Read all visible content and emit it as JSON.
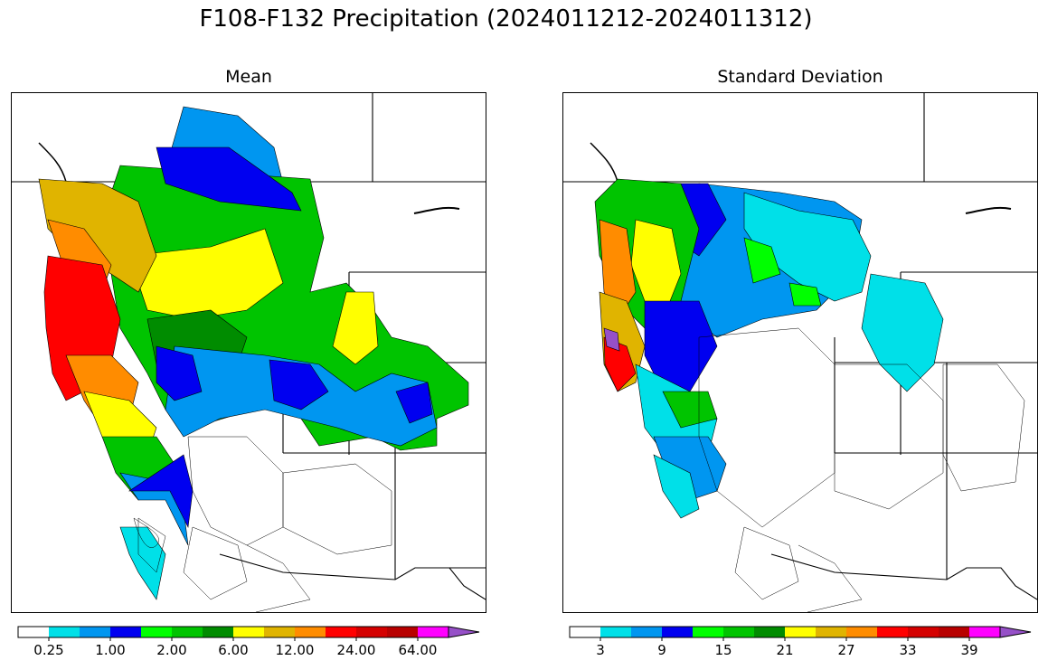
{
  "figure": {
    "title": "F108-F132 Precipitation (2024011212-2024011312)"
  },
  "panels": [
    {
      "id": "mean",
      "title": "Mean",
      "colorbar": {
        "colors": [
          "#ffffff",
          "#00e0e8",
          "#0096f0",
          "#0000f0",
          "#00ff00",
          "#00c400",
          "#008c00",
          "#ffff00",
          "#e0b400",
          "#ff8c00",
          "#ff0000",
          "#d40000",
          "#b80000",
          "#ff00ff",
          "#9650c8"
        ],
        "tick_labels": [
          "0.25",
          "1.00",
          "2.00",
          "6.00",
          "12.00",
          "24.00",
          "64.00"
        ],
        "extend": "max"
      }
    },
    {
      "id": "std",
      "title": "Standard Deviation",
      "colorbar": {
        "colors": [
          "#ffffff",
          "#00e0e8",
          "#0096f0",
          "#0000f0",
          "#00ff00",
          "#00c400",
          "#008c00",
          "#ffff00",
          "#e0b400",
          "#ff8c00",
          "#ff0000",
          "#d40000",
          "#b80000",
          "#ff00ff",
          "#9650c8"
        ],
        "tick_labels": [
          "3",
          "9",
          "15",
          "21",
          "27",
          "33",
          "39"
        ],
        "extend": "max"
      }
    }
  ]
}
